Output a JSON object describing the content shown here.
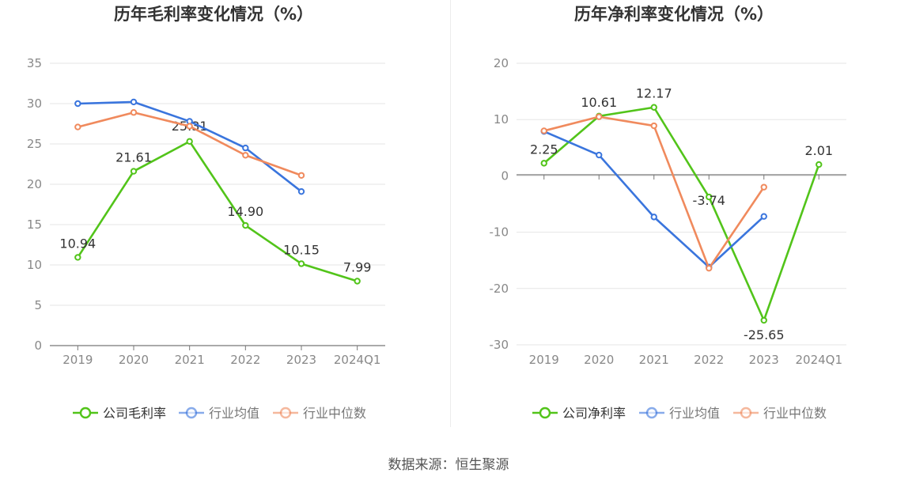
{
  "chart_data": [
    {
      "type": "line",
      "title": "历年毛利率变化情况（%）",
      "categories": [
        "2019",
        "2020",
        "2021",
        "2022",
        "2023",
        "2024Q1"
      ],
      "ylim": [
        0,
        35
      ],
      "yticks": [
        0,
        5,
        10,
        15,
        20,
        25,
        30,
        35
      ],
      "series": [
        {
          "name": "公司毛利率",
          "color": "#52c41a",
          "values": [
            10.94,
            21.61,
            25.31,
            14.9,
            10.15,
            7.99
          ],
          "labels": [
            "10.94",
            "21.61",
            "25.31",
            "14.90",
            "10.15",
            "7.99"
          ]
        },
        {
          "name": "行业均值",
          "color": "#3a75dd",
          "values": [
            30.0,
            30.2,
            27.8,
            24.5,
            19.1,
            null
          ]
        },
        {
          "name": "行业中位数",
          "color": "#f08a5d",
          "values": [
            27.1,
            28.9,
            27.2,
            23.6,
            21.1,
            null
          ]
        }
      ]
    },
    {
      "type": "line",
      "title": "历年净利率变化情况（%）",
      "categories": [
        "2019",
        "2020",
        "2021",
        "2022",
        "2023",
        "2024Q1"
      ],
      "ylim": [
        -30,
        20
      ],
      "yticks": [
        -30,
        -20,
        -10,
        0,
        10,
        20
      ],
      "series": [
        {
          "name": "公司净利率",
          "color": "#52c41a",
          "values": [
            2.25,
            10.61,
            12.17,
            -3.74,
            -25.65,
            2.01
          ],
          "labels": [
            "2.25",
            "10.61",
            "12.17",
            "-3.74",
            "-25.65",
            "2.01"
          ]
        },
        {
          "name": "行业均值",
          "color": "#3a75dd",
          "values": [
            7.9,
            3.7,
            -7.3,
            -16.2,
            -7.2,
            null
          ]
        },
        {
          "name": "行业中位数",
          "color": "#f08a5d",
          "values": [
            8.0,
            10.5,
            8.9,
            -16.4,
            -2.0,
            null
          ]
        }
      ]
    }
  ],
  "source": "数据来源：恒生聚源"
}
